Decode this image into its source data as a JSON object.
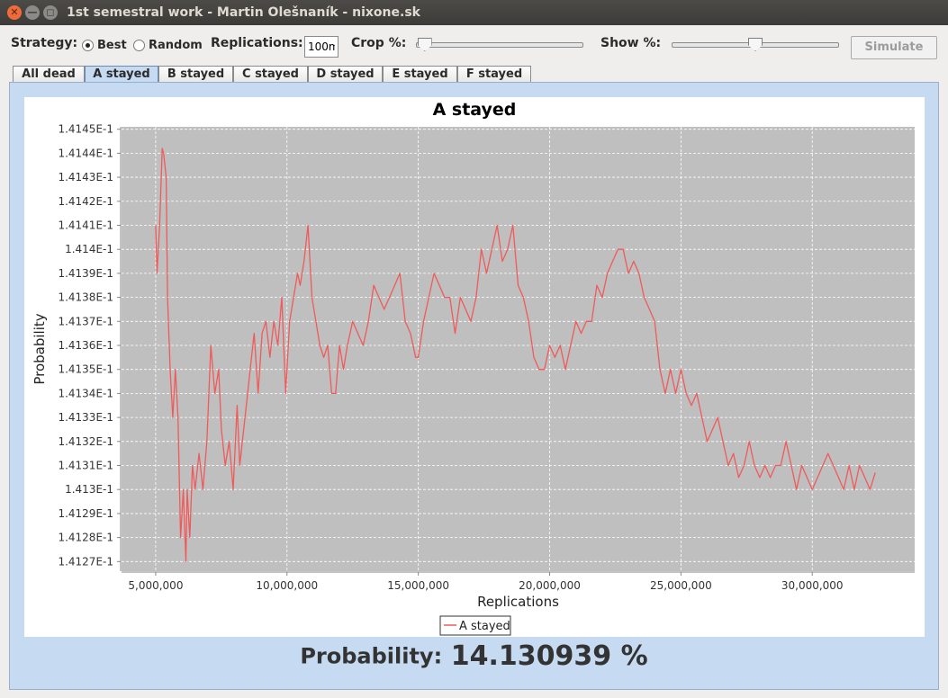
{
  "window": {
    "title": "1st semestral work - Martin Olešnaník - nixone.sk",
    "close_glyph": "✕",
    "minimize_glyph": "—",
    "maximize_glyph": "◻"
  },
  "toolbar": {
    "strategy_label": "Strategy:",
    "strategy_options": [
      {
        "label": "Best",
        "checked": true
      },
      {
        "label": "Random",
        "checked": false
      }
    ],
    "replications_label": "Replications:",
    "replications_value": "100m",
    "crop_label": "Crop %:",
    "crop_value_pct": 1,
    "show_label": "Show %:",
    "show_value_pct": 50,
    "simulate_label": "Simulate",
    "simulate_enabled": false
  },
  "tabs": [
    {
      "label": "All dead",
      "active": false
    },
    {
      "label": "A stayed",
      "active": true
    },
    {
      "label": "B stayed",
      "active": false
    },
    {
      "label": "C stayed",
      "active": false
    },
    {
      "label": "D stayed",
      "active": false
    },
    {
      "label": "E stayed",
      "active": false
    },
    {
      "label": "F stayed",
      "active": false
    }
  ],
  "chart_data": {
    "type": "line",
    "title": "A stayed",
    "xlabel": "Replications",
    "ylabel": "Probability",
    "xlim": [
      3700000,
      33900000
    ],
    "ylim": [
      0.141266,
      0.141451
    ],
    "x_ticks": [
      5000000,
      10000000,
      15000000,
      20000000,
      25000000,
      30000000
    ],
    "x_tick_labels": [
      "5,000,000",
      "10,000,000",
      "15,000,000",
      "20,000,000",
      "25,000,000",
      "30,000,000"
    ],
    "y_ticks": [
      0.14127,
      0.14128,
      0.14129,
      0.1413,
      0.14131,
      0.14132,
      0.14133,
      0.14134,
      0.14135,
      0.14136,
      0.14137,
      0.14138,
      0.14139,
      0.1414,
      0.14141,
      0.14142,
      0.14143,
      0.14144,
      0.14145
    ],
    "y_tick_labels": [
      "1.4127E-1",
      "1.4128E-1",
      "1.4129E-1",
      "1.413E-1",
      "1.4131E-1",
      "1.4132E-1",
      "1.4133E-1",
      "1.4134E-1",
      "1.4135E-1",
      "1.4136E-1",
      "1.4137E-1",
      "1.4138E-1",
      "1.4139E-1",
      "1.414E-1",
      "1.4141E-1",
      "1.4142E-1",
      "1.4143E-1",
      "1.4144E-1",
      "1.4145E-1"
    ],
    "grid": true,
    "legend_position": "bottom",
    "series": [
      {
        "name": "A stayed",
        "color": "#f05a5a",
        "x": [
          5000000,
          5050000,
          5150000,
          5250000,
          5300000,
          5400000,
          5450000,
          5550000,
          5650000,
          5750000,
          5850000,
          5950000,
          6050000,
          6150000,
          6200000,
          6300000,
          6400000,
          6500000,
          6650000,
          6800000,
          6950000,
          7100000,
          7250000,
          7400000,
          7500000,
          7650000,
          7800000,
          7950000,
          8100000,
          8200000,
          8300000,
          8450000,
          8600000,
          8750000,
          8900000,
          9050000,
          9200000,
          9350000,
          9500000,
          9650000,
          9800000,
          9950000,
          10100000,
          10250000,
          10400000,
          10500000,
          10650000,
          10800000,
          10950000,
          11100000,
          11250000,
          11400000,
          11550000,
          11700000,
          11850000,
          12000000,
          12150000,
          12300000,
          12500000,
          12700000,
          12900000,
          13100000,
          13300000,
          13500000,
          13700000,
          13900000,
          14100000,
          14300000,
          14500000,
          14700000,
          14900000,
          15000000,
          15200000,
          15400000,
          15600000,
          15800000,
          16000000,
          16200000,
          16400000,
          16600000,
          16800000,
          17000000,
          17200000,
          17400000,
          17600000,
          17800000,
          18000000,
          18200000,
          18400000,
          18600000,
          18800000,
          19000000,
          19200000,
          19400000,
          19600000,
          19800000,
          20000000,
          20200000,
          20400000,
          20600000,
          20800000,
          21000000,
          21200000,
          21400000,
          21600000,
          21800000,
          22000000,
          22200000,
          22400000,
          22600000,
          22800000,
          23000000,
          23200000,
          23400000,
          23600000,
          23800000,
          24000000,
          24200000,
          24400000,
          24600000,
          24800000,
          25000000,
          25200000,
          25400000,
          25600000,
          25800000,
          26000000,
          26200000,
          26400000,
          26600000,
          26800000,
          27000000,
          27200000,
          27400000,
          27600000,
          27800000,
          28000000,
          28200000,
          28400000,
          28600000,
          28800000,
          29000000,
          29200000,
          29400000,
          29600000,
          29800000,
          30000000,
          30200000,
          30400000,
          30600000,
          30800000,
          31000000,
          31200000,
          31400000,
          31600000,
          31800000,
          32000000,
          32200000,
          32400000
        ],
        "y": [
          0.14141,
          0.14139,
          0.14141,
          0.141442,
          0.14144,
          0.14143,
          0.14138,
          0.14135,
          0.14133,
          0.14135,
          0.14133,
          0.14128,
          0.1413,
          0.14127,
          0.1413,
          0.14128,
          0.14131,
          0.1413,
          0.141315,
          0.1413,
          0.14132,
          0.14136,
          0.14134,
          0.14135,
          0.141325,
          0.14131,
          0.14132,
          0.1413,
          0.141335,
          0.14131,
          0.14132,
          0.141335,
          0.14135,
          0.141365,
          0.14134,
          0.141365,
          0.14137,
          0.141355,
          0.14137,
          0.14136,
          0.14138,
          0.14134,
          0.14137,
          0.14138,
          0.14139,
          0.141385,
          0.141395,
          0.14141,
          0.14138,
          0.14137,
          0.14136,
          0.141355,
          0.14136,
          0.14134,
          0.14134,
          0.14136,
          0.14135,
          0.14136,
          0.14137,
          0.141365,
          0.14136,
          0.14137,
          0.141385,
          0.14138,
          0.141375,
          0.14138,
          0.141385,
          0.14139,
          0.14137,
          0.141365,
          0.141355,
          0.141355,
          0.14137,
          0.14138,
          0.14139,
          0.141385,
          0.14138,
          0.14138,
          0.141365,
          0.14138,
          0.141375,
          0.14137,
          0.14138,
          0.1414,
          0.14139,
          0.1414,
          0.14141,
          0.141395,
          0.1414,
          0.14141,
          0.141385,
          0.14138,
          0.14137,
          0.141355,
          0.14135,
          0.14135,
          0.14136,
          0.141355,
          0.14136,
          0.14135,
          0.14136,
          0.14137,
          0.141365,
          0.14137,
          0.14137,
          0.141385,
          0.14138,
          0.14139,
          0.141395,
          0.1414,
          0.1414,
          0.14139,
          0.141395,
          0.14139,
          0.14138,
          0.141375,
          0.14137,
          0.14135,
          0.14134,
          0.14135,
          0.14134,
          0.14135,
          0.14134,
          0.141335,
          0.14134,
          0.14133,
          0.14132,
          0.141325,
          0.14133,
          0.14132,
          0.14131,
          0.141315,
          0.141305,
          0.14131,
          0.14132,
          0.14131,
          0.141305,
          0.14131,
          0.141305,
          0.14131,
          0.14131,
          0.14132,
          0.14131,
          0.1413,
          0.14131,
          0.141305,
          0.1413,
          0.141305,
          0.14131,
          0.141315,
          0.14131,
          0.141305,
          0.1413,
          0.14131,
          0.1413,
          0.14131,
          0.141305,
          0.1413,
          0.141307
        ]
      }
    ]
  },
  "probability": {
    "label": "Probability:",
    "value": "14.130939 %"
  }
}
